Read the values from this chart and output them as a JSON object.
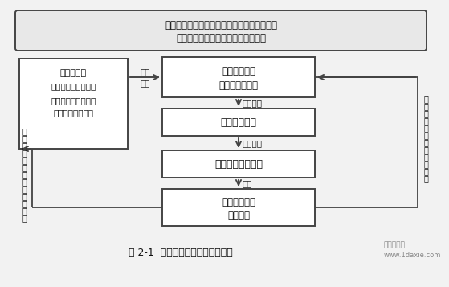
{
  "title_line1": "围绕获取可持续竞争优势部署和推进两化融合",
  "title_line2": "实现两化融合的闭环控制和良性循环",
  "box_left_title": "关注焦点：",
  "box_left_line1": "（出发点和落脚点）",
  "box_left_line2": "获取与企业战略匹配",
  "box_left_line3": "的可持续竞争优势",
  "box_tr_line1": "信息化环境下",
  "box_tr_line2": "新型能力的要求",
  "box_mid1": "两化融合目标",
  "box_mid2": "两化融合实施过程",
  "box_bot_line1": "信息化环境下",
  "box_bot_line2": "新型能力",
  "label_zhunque": "准确",
  "label_dingwei": "定位",
  "label_cehua": "策划提出",
  "label_guifan": "规范控制",
  "label_xingcheng": "形成",
  "label_left_v": [
    "跟",
    "踪",
    "评",
    "估",
    "所",
    "形",
    "成",
    "能",
    "力",
    "的",
    "符",
    "合",
    "性"
  ],
  "label_right_v": [
    "跟",
    "踪",
    "评",
    "估",
    "预",
    "期",
    "能",
    "力",
    "形",
    "成",
    "情",
    "况"
  ],
  "caption": "图 2-1  两化融合管理体系实现路径",
  "watermark1": "第一代写网",
  "watermark2": "www.1daxie.com",
  "bg": "#f2f2f2",
  "white": "#ffffff",
  "title_bg": "#e8e8e8",
  "border": "#444444",
  "text": "#111111",
  "gray_text": "#888888"
}
